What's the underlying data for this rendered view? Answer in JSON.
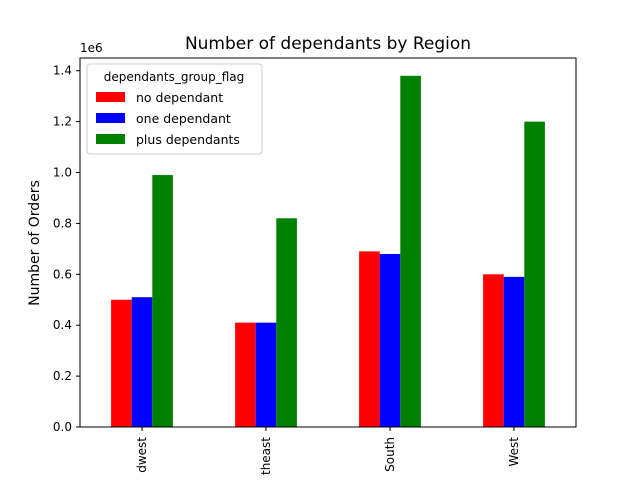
{
  "chart_data": {
    "type": "bar",
    "title": "Number of dependants by Region",
    "ylabel": "Number of Orders",
    "xlabel": "",
    "y_multiplier_label": "1e6",
    "categories": [
      "Midwest",
      "Northeast",
      "South",
      "West"
    ],
    "category_tick_labels": [
      "dwest",
      "theast",
      "South",
      "West"
    ],
    "ylim": [
      0,
      1.45
    ],
    "yticks": [
      0.0,
      0.2,
      0.4,
      0.6,
      0.8,
      1.0,
      1.2,
      1.4
    ],
    "ytick_labels": [
      "0.0",
      "0.2",
      "0.4",
      "0.6",
      "0.8",
      "1.0",
      "1.2",
      "1.4"
    ],
    "legend": {
      "title": "dependants_group_flag",
      "placement": "upper-left"
    },
    "series": [
      {
        "name": "no dependant",
        "color": "#ff0000",
        "values": [
          0.5,
          0.41,
          0.69,
          0.6
        ]
      },
      {
        "name": "one dependant",
        "color": "#0000ff",
        "values": [
          0.51,
          0.41,
          0.68,
          0.59
        ]
      },
      {
        "name": "plus dependants",
        "color": "#008000",
        "values": [
          0.99,
          0.82,
          1.38,
          1.2
        ]
      }
    ],
    "grid": false
  }
}
